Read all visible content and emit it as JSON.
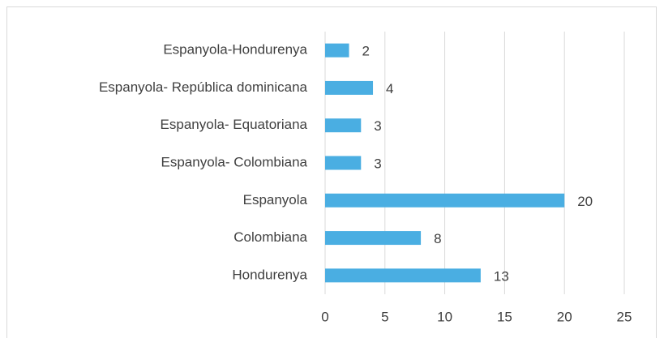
{
  "chart_data": {
    "type": "barh",
    "categories": [
      "Espanyola-Hondurenya",
      "Espanyola- República dominicana",
      "Espanyola- Equatoriana",
      "Espanyola- Colombiana",
      "Espanyola",
      "Colombiana",
      "Hondurenya"
    ],
    "values": [
      2,
      4,
      3,
      3,
      20,
      8,
      13
    ],
    "color": "#4aaee2",
    "xlim": [
      0,
      25
    ],
    "xticks": [
      0,
      5,
      10,
      15,
      20,
      25
    ],
    "grid": true
  }
}
